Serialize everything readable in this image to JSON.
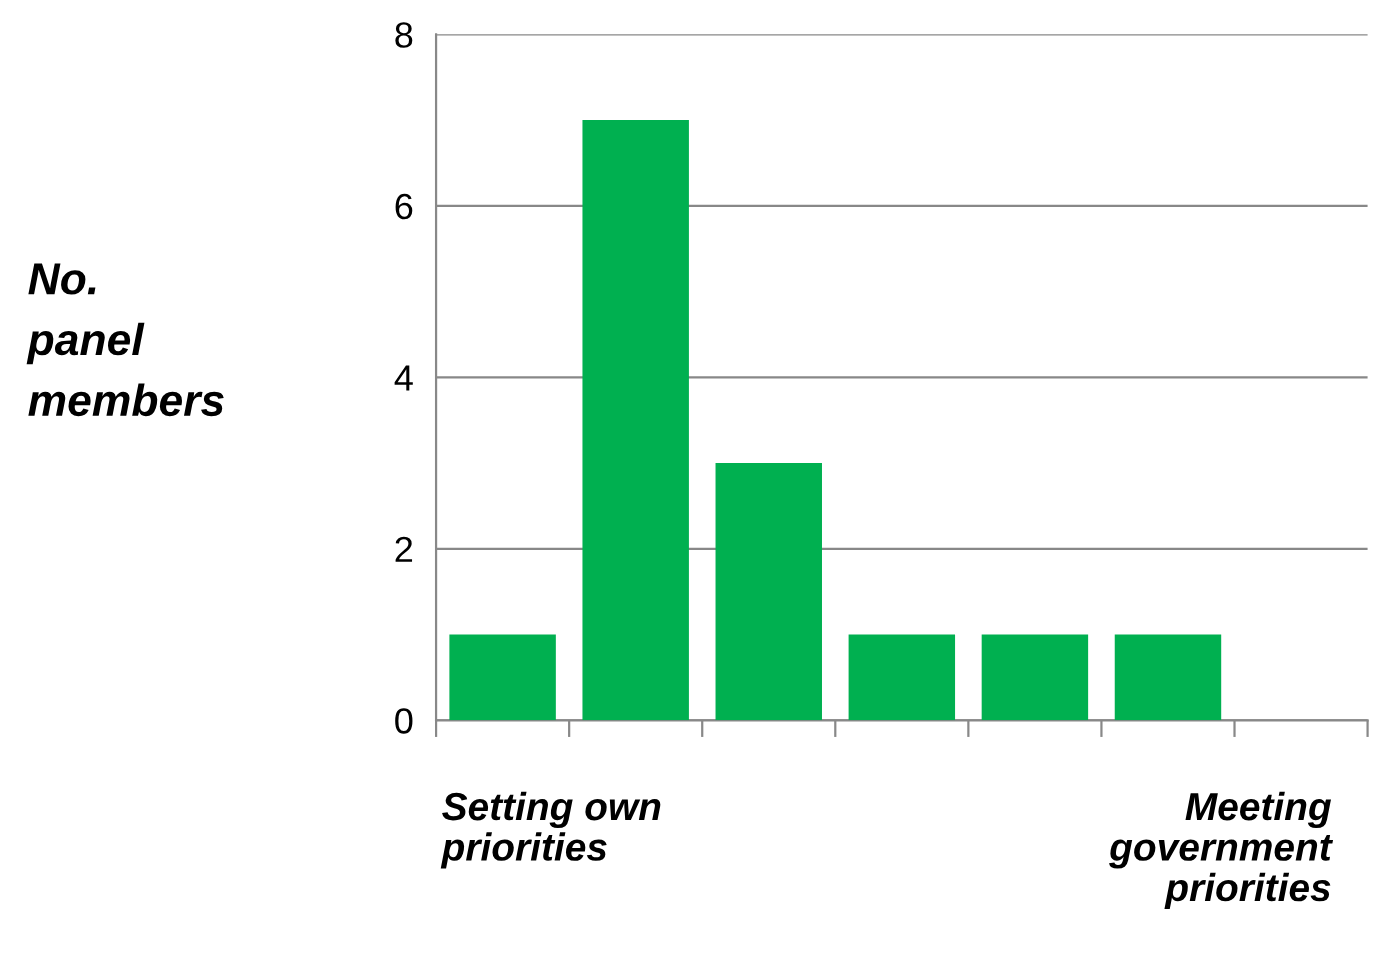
{
  "chart_data": {
    "type": "bar",
    "ylabel": "No. panel members",
    "categories": [
      null,
      null,
      null,
      null,
      null,
      null,
      null
    ],
    "values": [
      1,
      7,
      3,
      1,
      1,
      1,
      null
    ],
    "color": "#00b050",
    "ylim": [
      0,
      8
    ],
    "yticks": [
      0,
      2,
      4,
      6,
      8
    ],
    "grid": "y",
    "tick_labels": "y",
    "annotations": [
      "Setting own priorities",
      "Meeting government priorities"
    ]
  }
}
